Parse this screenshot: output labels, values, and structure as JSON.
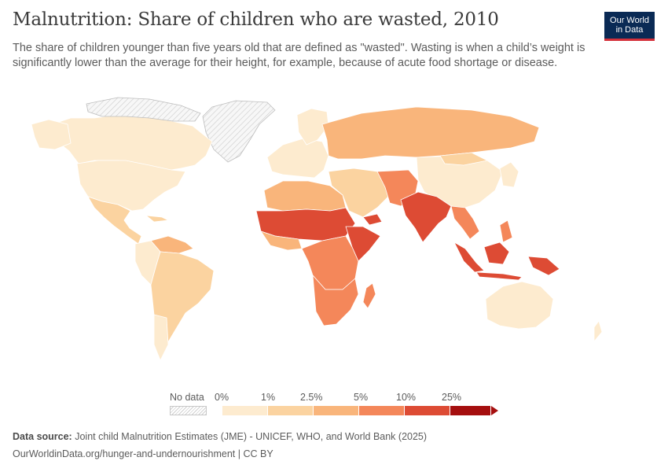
{
  "title": "Malnutrition: Share of children who are wasted, 2010",
  "subtitle": "The share of children younger than five years old that are defined as \"wasted\". Wasting is when a child’s weight is significantly lower than the average for their height, for example, because of acute food shortage or disease.",
  "logo": {
    "line1": "Our World",
    "line2": "in Data"
  },
  "legend": {
    "no_data_label": "No data",
    "tick_labels": [
      "0%",
      "1%",
      "2.5%",
      "5%",
      "10%",
      "25%"
    ],
    "bin_colors": [
      "#fdebcf",
      "#fbd3a0",
      "#f9b57b",
      "#f4875a",
      "#dd4b34",
      "#a50f0f"
    ]
  },
  "footer": {
    "source_label": "Data source:",
    "source_text": "Joint child Malnutrition Estimates (JME) - UNICEF, WHO, and World Bank (2025)",
    "url_text": "OurWorldinData.org/hunger-and-undernourishment | CC BY"
  }
}
